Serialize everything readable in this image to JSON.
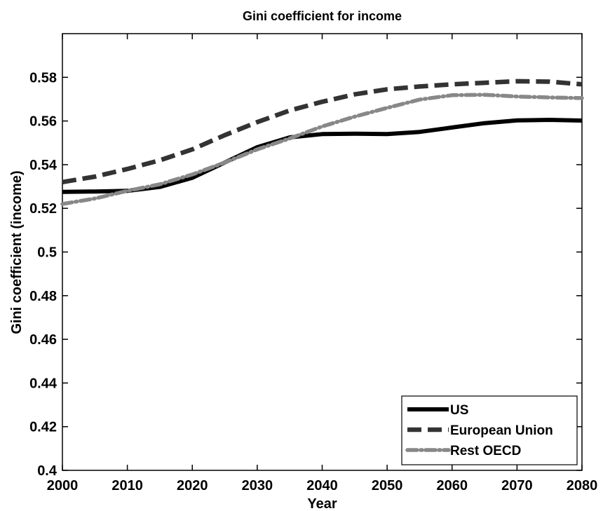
{
  "chart_data": {
    "type": "line",
    "title": "Gini coefficient for income",
    "xlabel": "Year",
    "ylabel": "Gini coefficient (income)",
    "xlim": [
      2000,
      2080
    ],
    "ylim": [
      0.4,
      0.6
    ],
    "xticks": [
      2000,
      2010,
      2020,
      2030,
      2040,
      2050,
      2060,
      2070,
      2080
    ],
    "yticks": [
      0.4,
      0.42,
      0.44,
      0.46,
      0.48,
      0.5,
      0.52,
      0.54,
      0.56,
      0.58
    ],
    "ytick_labels": [
      "0.4",
      "0.42",
      "0.44",
      "0.46",
      "0.48",
      "0.5",
      "0.52",
      "0.54",
      "0.56",
      "0.58"
    ],
    "grid": false,
    "legend_position": "bottom-right",
    "x": [
      2000,
      2005,
      2010,
      2015,
      2020,
      2025,
      2030,
      2035,
      2040,
      2045,
      2050,
      2055,
      2060,
      2065,
      2070,
      2075,
      2080
    ],
    "series": [
      {
        "name": "US",
        "color": "#000000",
        "style": "solid",
        "values": [
          0.5275,
          0.5277,
          0.528,
          0.5298,
          0.534,
          0.541,
          0.548,
          0.5525,
          0.554,
          0.5542,
          0.554,
          0.555,
          0.557,
          0.559,
          0.5603,
          0.5605,
          0.5602
        ]
      },
      {
        "name": "European Union",
        "color": "#333333",
        "style": "dashed",
        "values": [
          0.532,
          0.5345,
          0.538,
          0.542,
          0.547,
          0.5535,
          0.5595,
          0.5648,
          0.5688,
          0.5722,
          0.5745,
          0.5758,
          0.5768,
          0.5775,
          0.5782,
          0.578,
          0.5768
        ]
      },
      {
        "name": "Rest OECD",
        "color": "#888888",
        "style": "dash-dot",
        "values": [
          0.522,
          0.5245,
          0.528,
          0.531,
          0.5355,
          0.541,
          0.547,
          0.552,
          0.5575,
          0.562,
          0.566,
          0.5698,
          0.5718,
          0.572,
          0.5712,
          0.5708,
          0.5705
        ]
      }
    ]
  }
}
